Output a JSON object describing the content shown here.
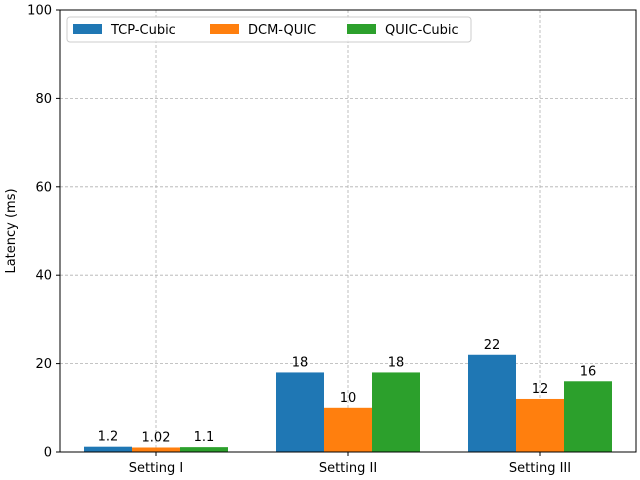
{
  "chart_data": {
    "type": "bar",
    "ylabel": "Latency (ms)",
    "xlabel": "",
    "ylim": [
      0,
      100
    ],
    "yticks": [
      0,
      20,
      40,
      60,
      80,
      100
    ],
    "grid": true,
    "legend_position": "top-left",
    "categories": [
      "Setting I",
      "Setting II",
      "Setting III"
    ],
    "series": [
      {
        "name": "TCP-Cubic",
        "color": "#1f77b4",
        "values": [
          1.2,
          18,
          22
        ],
        "labels": [
          "1.2",
          "18",
          "22"
        ]
      },
      {
        "name": "DCM-QUIC",
        "color": "#ff7f0e",
        "values": [
          1.02,
          10,
          12
        ],
        "labels": [
          "1.02",
          "10",
          "12"
        ]
      },
      {
        "name": "QUIC-Cubic",
        "color": "#2ca02c",
        "values": [
          1.1,
          18,
          16
        ],
        "labels": [
          "1.1",
          "18",
          "16"
        ]
      }
    ]
  }
}
